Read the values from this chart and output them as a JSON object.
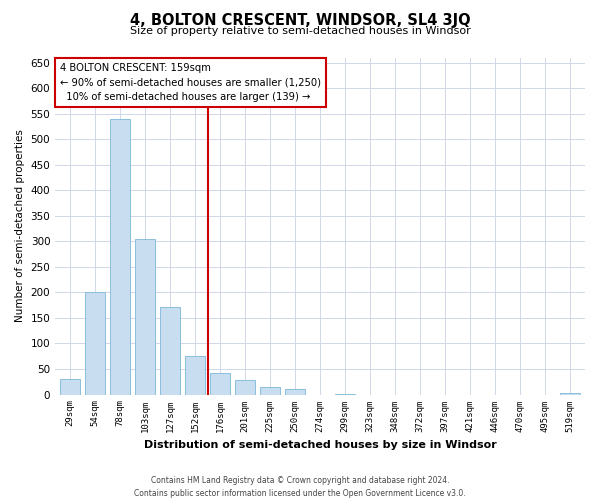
{
  "title": "4, BOLTON CRESCENT, WINDSOR, SL4 3JQ",
  "subtitle": "Size of property relative to semi-detached houses in Windsor",
  "xlabel": "Distribution of semi-detached houses by size in Windsor",
  "ylabel": "Number of semi-detached properties",
  "bar_labels": [
    "29sqm",
    "54sqm",
    "78sqm",
    "103sqm",
    "127sqm",
    "152sqm",
    "176sqm",
    "201sqm",
    "225sqm",
    "250sqm",
    "274sqm",
    "299sqm",
    "323sqm",
    "348sqm",
    "372sqm",
    "397sqm",
    "421sqm",
    "446sqm",
    "470sqm",
    "495sqm",
    "519sqm"
  ],
  "bar_values": [
    30,
    200,
    540,
    305,
    172,
    75,
    42,
    28,
    15,
    10,
    0,
    2,
    0,
    0,
    0,
    0,
    0,
    0,
    0,
    0,
    3
  ],
  "bar_color": "#c8ddf0",
  "bar_edge_color": "#7db8d8",
  "vline_x": 5.5,
  "vline_color": "#cc0000",
  "annotation_title": "4 BOLTON CRESCENT: 159sqm",
  "annotation_line1": "← 90% of semi-detached houses are smaller (1,250)",
  "annotation_line2": "10% of semi-detached houses are larger (139) →",
  "annotation_box_facecolor": "#ffffff",
  "annotation_box_edgecolor": "#cc0000",
  "ylim": [
    0,
    660
  ],
  "yticks": [
    0,
    50,
    100,
    150,
    200,
    250,
    300,
    350,
    400,
    450,
    500,
    550,
    600,
    650
  ],
  "footer_line1": "Contains HM Land Registry data © Crown copyright and database right 2024.",
  "footer_line2": "Contains public sector information licensed under the Open Government Licence v3.0.",
  "bg_color": "#ffffff",
  "grid_color": "#d0d8e8"
}
